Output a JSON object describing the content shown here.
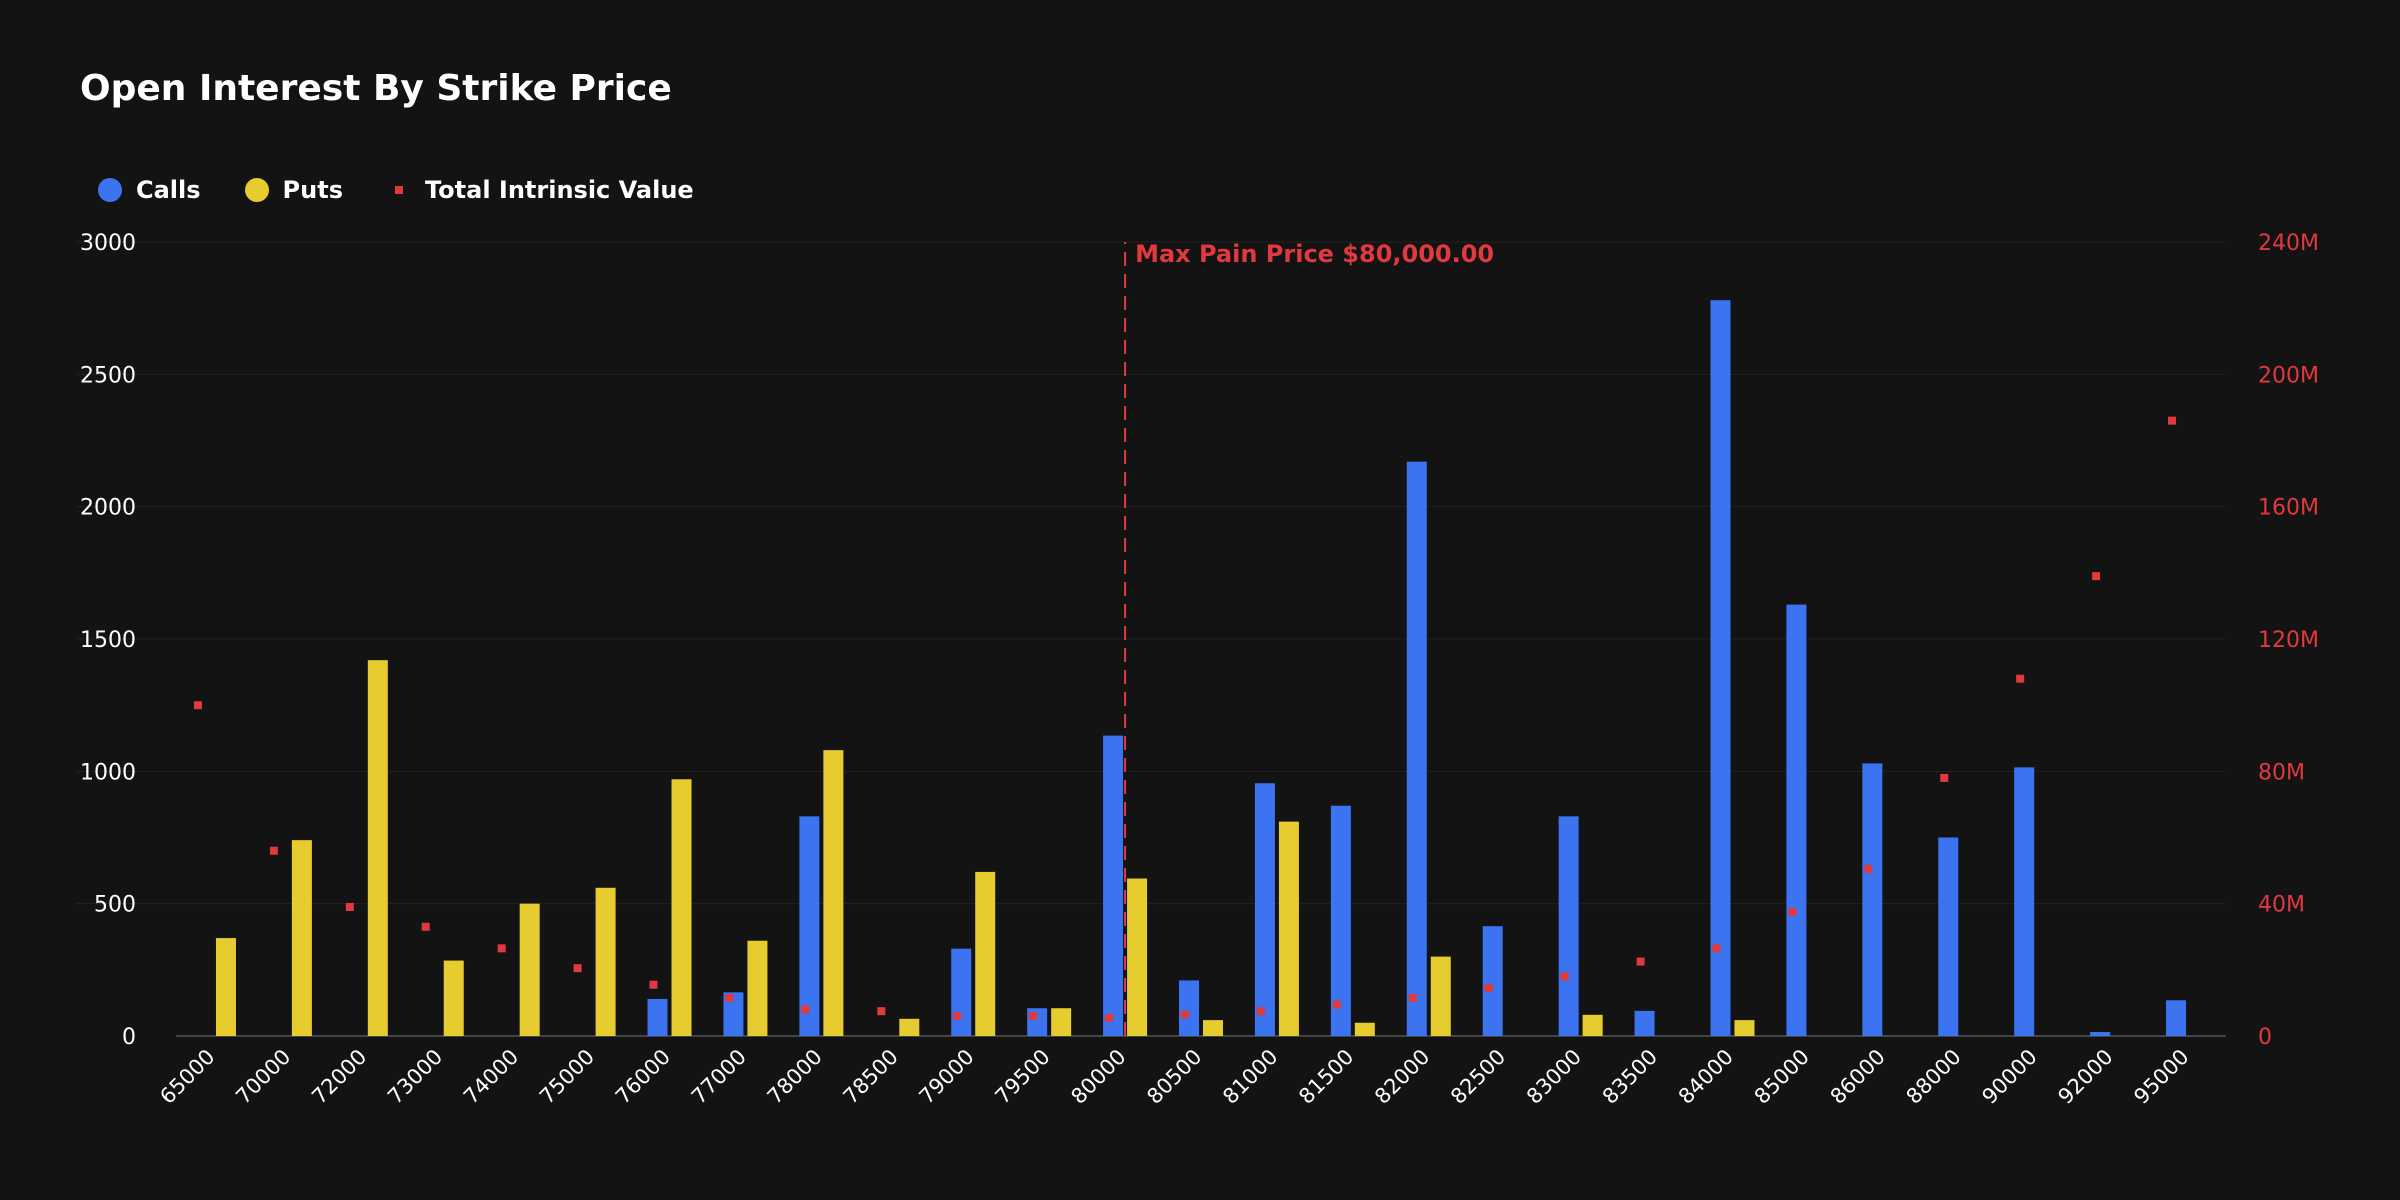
{
  "chart_data": {
    "type": "bar",
    "title": "Open Interest By Strike Price",
    "categories": [
      "65000",
      "70000",
      "72000",
      "73000",
      "74000",
      "75000",
      "76000",
      "77000",
      "78000",
      "78500",
      "79000",
      "79500",
      "80000",
      "80500",
      "81000",
      "81500",
      "82000",
      "82500",
      "83000",
      "83500",
      "84000",
      "85000",
      "86000",
      "88000",
      "90000",
      "92000",
      "95000"
    ],
    "series": [
      {
        "name": "Calls",
        "kind": "bar",
        "color": "#3b73f0",
        "values": [
          0,
          0,
          0,
          0,
          0,
          0,
          140,
          165,
          830,
          0,
          330,
          105,
          1135,
          210,
          955,
          870,
          2170,
          415,
          830,
          95,
          2780,
          1630,
          1030,
          750,
          1015,
          15,
          135
        ]
      },
      {
        "name": "Puts",
        "kind": "bar",
        "color": "#e6cc2e",
        "values": [
          370,
          740,
          1420,
          285,
          500,
          560,
          970,
          360,
          1080,
          65,
          620,
          105,
          595,
          60,
          810,
          50,
          300,
          0,
          80,
          0,
          60,
          0,
          0,
          0,
          0,
          0,
          0
        ]
      },
      {
        "name": "Total Intrinsic Value",
        "kind": "scatter",
        "axis": "right",
        "color": "#e0393e",
        "values": [
          100,
          56,
          39,
          33,
          26.5,
          20.5,
          15.5,
          11.5,
          8,
          7.5,
          6,
          6,
          5.5,
          6.5,
          7.5,
          9.5,
          11.5,
          14.5,
          18,
          22.5,
          26.5,
          37.5,
          50.5,
          78,
          108,
          139,
          186
        ]
      }
    ],
    "yAxisLeft": {
      "min": 0,
      "max": 3000,
      "ticks": [
        "0",
        "500",
        "1000",
        "1500",
        "2000",
        "2500",
        "3000"
      ]
    },
    "yAxisRight": {
      "min": 0,
      "max": 240,
      "ticks": [
        "0",
        "40M",
        "80M",
        "120M",
        "160M",
        "200M",
        "240M"
      ],
      "color": "#e0393e"
    },
    "grid": true,
    "legend_position": "top-left",
    "annotation": {
      "label": "Max Pain Price $80,000.00",
      "category": "80000",
      "color": "#e0393e"
    }
  }
}
